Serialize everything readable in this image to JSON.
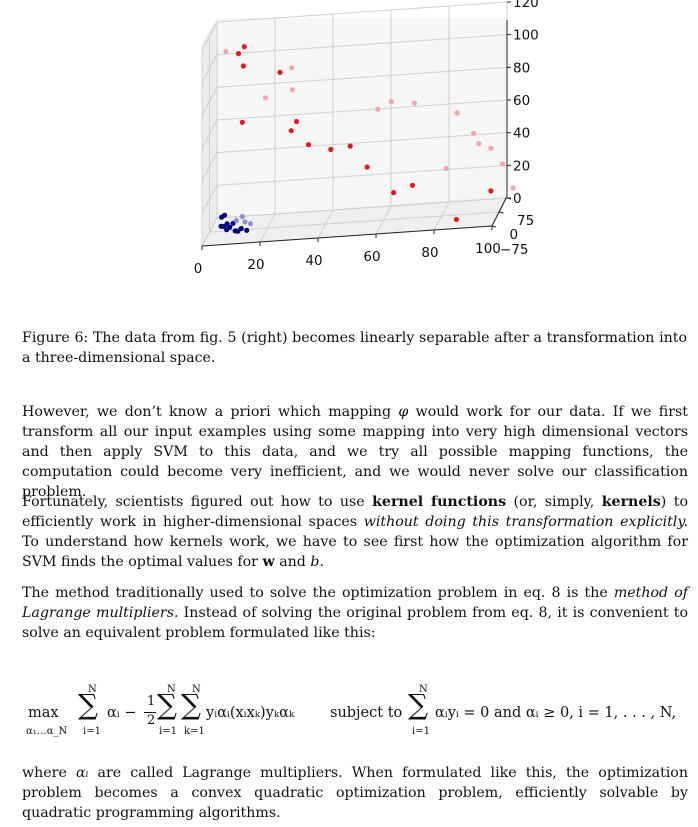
{
  "figure": {
    "chart_data": {
      "type": "scatter",
      "dimensions": 3,
      "x_ticks": [
        "0",
        "20",
        "40",
        "60",
        "80",
        "100"
      ],
      "y_ticks": [
        "−75",
        "0",
        "75"
      ],
      "z_ticks": [
        "0",
        "20",
        "40",
        "60",
        "80",
        "100",
        "120"
      ],
      "xlim": [
        0,
        100
      ],
      "ylim": [
        -75,
        75
      ],
      "zlim": [
        0,
        120
      ],
      "grid": true,
      "series": [
        {
          "color": "#e31a1c",
          "points": [
            {
              "x": 10,
              "y": 0,
              "z": 108
            },
            {
              "x": 12,
              "y": 0,
              "z": 112
            },
            {
              "x": 11,
              "y": 20,
              "z": 98
            },
            {
              "x": 25,
              "y": -20,
              "z": 97
            },
            {
              "x": 12,
              "y": -20,
              "z": 68
            },
            {
              "x": 30,
              "y": 0,
              "z": 64
            },
            {
              "x": 28,
              "y": 5,
              "z": 58
            },
            {
              "x": 35,
              "y": -25,
              "z": 52
            },
            {
              "x": 42,
              "y": -5,
              "z": 46
            },
            {
              "x": 48,
              "y": 15,
              "z": 45
            },
            {
              "x": 54,
              "y": 10,
              "z": 32
            },
            {
              "x": 70,
              "y": 0,
              "z": 20
            },
            {
              "x": 64,
              "y": -15,
              "z": 18
            },
            {
              "x": 96,
              "y": 30,
              "z": 10
            },
            {
              "x": 86,
              "y": -25,
              "z": 0
            }
          ]
        },
        {
          "color": "#f4a4ac",
          "points": [
            {
              "x": 6,
              "y": -10,
              "z": 111
            },
            {
              "x": 28,
              "y": 10,
              "z": 96
            },
            {
              "x": 30,
              "y": -40,
              "z": 88
            },
            {
              "x": 20,
              "y": -20,
              "z": 82
            },
            {
              "x": 62,
              "y": 20,
              "z": 70
            },
            {
              "x": 58,
              "y": 0,
              "z": 68
            },
            {
              "x": 70,
              "y": 20,
              "z": 68
            },
            {
              "x": 84,
              "y": 40,
              "z": 58
            },
            {
              "x": 90,
              "y": 30,
              "z": 46
            },
            {
              "x": 92,
              "y": 25,
              "z": 40
            },
            {
              "x": 96,
              "y": 30,
              "z": 36
            },
            {
              "x": 82,
              "y": -10,
              "z": 30
            },
            {
              "x": 100,
              "y": 30,
              "z": 26
            },
            {
              "x": 104,
              "y": 20,
              "z": 12
            }
          ]
        },
        {
          "color": "#00007f",
          "points": [
            {
              "x": 4,
              "y": 5,
              "z": 8
            },
            {
              "x": 6,
              "y": 2,
              "z": 4
            },
            {
              "x": 5,
              "y": -2,
              "z": 3
            },
            {
              "x": 7,
              "y": 0,
              "z": 2
            },
            {
              "x": 6,
              "y": -3,
              "z": 1
            },
            {
              "x": 9,
              "y": -4,
              "z": 0
            },
            {
              "x": 10,
              "y": -6,
              "z": 0
            },
            {
              "x": 4,
              "y": 0,
              "z": 3
            },
            {
              "x": 8,
              "y": 3,
              "z": 4
            },
            {
              "x": 5,
              "y": 6,
              "z": 9
            },
            {
              "x": 11,
              "y": -2,
              "z": 1
            },
            {
              "x": 13,
              "y": -5,
              "z": 0
            }
          ]
        },
        {
          "color": "#8f8fcf",
          "points": [
            {
              "x": 9,
              "y": 8,
              "z": 5
            },
            {
              "x": 12,
              "y": 6,
              "z": 4
            },
            {
              "x": 14,
              "y": 3,
              "z": 3
            },
            {
              "x": 11,
              "y": 10,
              "z": 7
            }
          ]
        }
      ]
    }
  },
  "caption": "Figure 6: The data from fig. 5 (right) becomes linearly separable after a transformation into a three-dimensional space.",
  "paragraph1": {
    "a": "However, we don’t know a priori which mapping ",
    "phi": "φ",
    "b": " would work for our data. If we first transform all our input examples using some mapping into very high dimensional vectors and then apply SVM to this data, and we try all possible mapping functions, the computation could become very inefficient, and we would never solve our classification problem."
  },
  "paragraph2": {
    "a": "Fortunately, scientists figured out how to use ",
    "bold1": "kernel functions",
    "b": " (or, simply, ",
    "bold2": "kernels",
    "c": ") to efficiently work in higher-dimensional spaces ",
    "italic": "without doing this transformation explicitly.",
    "d": " To understand how kernels work, we have to see first how the optimization algorithm for SVM finds the optimal values for ",
    "w": "w",
    "e": " and ",
    "b_var": "b",
    "f": "."
  },
  "paragraph3": {
    "a": "The method traditionally used to solve the optimization problem in eq. 8 is the ",
    "italic": "method of Lagrange multipliers.",
    "b": " Instead of solving the original problem from eq. 8, it is convenient to solve an equivalent problem formulated like this:"
  },
  "equation": {
    "max": "max",
    "max_sub": "α₁…α_N",
    "sum": "∑",
    "upper_N": "N",
    "lower_i": "i=1",
    "lower_k": "k=1",
    "alpha_i": "αᵢ −",
    "half_num": "1",
    "half_den": "2",
    "double_body": "yᵢαᵢ(xᵢxₖ)yₖαₖ",
    "subject": "subject to",
    "constraint_body": "αᵢyᵢ = 0 and αᵢ ≥ 0, i = 1, . . . , N,"
  },
  "paragraph4": {
    "a": "where ",
    "alpha": "αᵢ",
    "b": " are called Lagrange multipliers. When formulated like this, the optimization problem becomes a convex quadratic optimization problem, efficiently solvable by quadratic programming algorithms."
  }
}
